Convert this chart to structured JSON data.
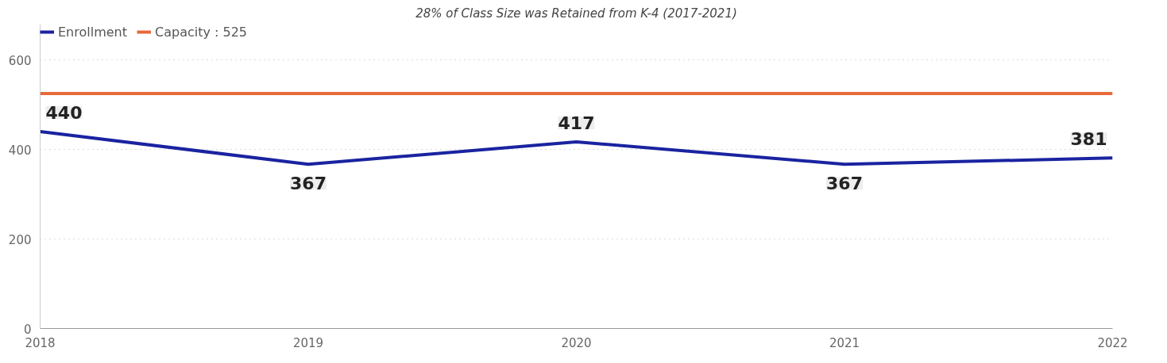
{
  "chart_data": {
    "type": "line",
    "title": "28% of Class Size was Retained from K-4 (2017-2021)",
    "x": [
      2018,
      2019,
      2020,
      2021,
      2022
    ],
    "series": [
      {
        "name": "Enrollment",
        "color": "#1a23a0",
        "values": [
          440,
          367,
          417,
          367,
          381
        ],
        "value_labels": [
          "440",
          "367",
          "417",
          "367",
          "381"
        ]
      },
      {
        "name": "Capacity : 525",
        "color": "#e8693a",
        "values": [
          525,
          525,
          525,
          525,
          525
        ]
      }
    ],
    "xlim": [
      2018,
      2022
    ],
    "xticks": [
      2018,
      2019,
      2020,
      2021,
      2022
    ],
    "ylim": [
      0,
      680
    ],
    "yticks": [
      0,
      200,
      400,
      600
    ],
    "grid": "y",
    "legend": "top left",
    "marker": "none",
    "line_style": "solid"
  }
}
